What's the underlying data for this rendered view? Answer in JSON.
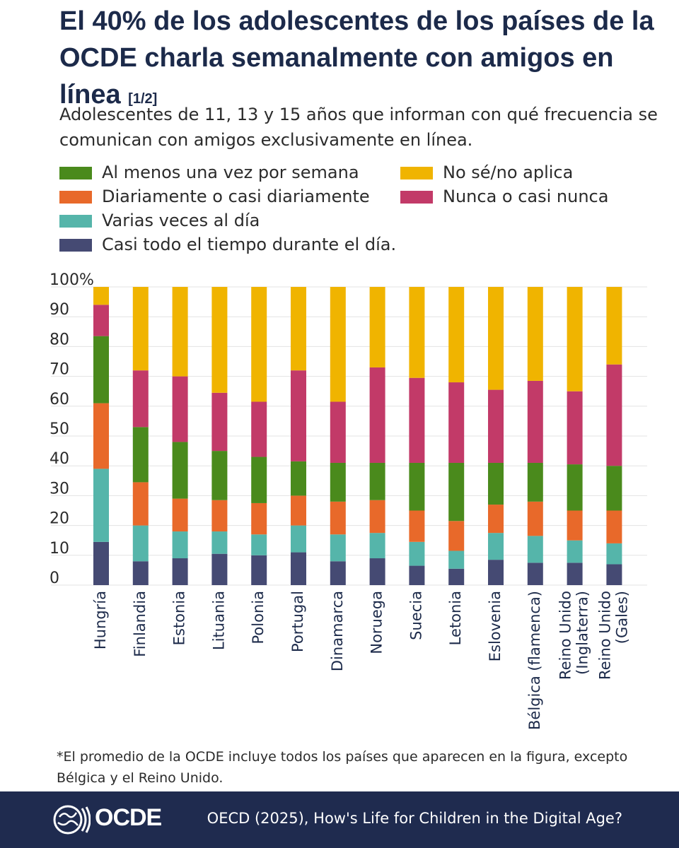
{
  "title": {
    "main": "El 40% de los adolescentes de los países de la OCDE charla semanalmente con amigos en línea",
    "part": "[1/2]"
  },
  "subtitle": "Adolescentes de 11, 13 y 15 años que informan con qué frecuencia se comunican con amigos exclusivamente en línea.",
  "colors": {
    "weekly": "#4a8a1c",
    "daily": "#e8692a",
    "several": "#55b5aa",
    "almost_all": "#454a73",
    "dont_know": "#f0b400",
    "never": "#c23a68"
  },
  "legend": [
    {
      "key": "weekly",
      "label": "Al menos una vez por semana"
    },
    {
      "key": "daily",
      "label": "Diariamente o casi diariamente"
    },
    {
      "key": "several",
      "label": "Varias veces al día"
    },
    {
      "key": "almost_all",
      "label": "Casi todo el tiempo durante el día."
    },
    {
      "key": "dont_know",
      "label": "No sé/no aplica"
    },
    {
      "key": "never",
      "label": "Nunca o casi nunca"
    }
  ],
  "chart_data": {
    "type": "bar",
    "stacked": true,
    "title": "El 40% de los adolescentes de los países de la OCDE charla semanalmente con amigos en línea",
    "xlabel": "",
    "ylabel": "",
    "ylim": [
      0,
      100
    ],
    "y_ticks": [
      "0",
      "10",
      "20",
      "30",
      "40",
      "50",
      "60",
      "70",
      "80",
      "90",
      "100%"
    ],
    "categories": [
      "Hungría",
      "Finlandia",
      "Estonia",
      "Lituania",
      "Polonia",
      "Portugal",
      "Dinamarca",
      "Noruega",
      "Suecia",
      "Letonia",
      "Eslovenia",
      "Bélgica (flamenca)",
      "Reino Unido (Inglaterra)",
      "Reino Unido (Gales)"
    ],
    "category_lines": [
      [
        "Hungría"
      ],
      [
        "Finlandia"
      ],
      [
        "Estonia"
      ],
      [
        "Lituania"
      ],
      [
        "Polonia"
      ],
      [
        "Portugal"
      ],
      [
        "Dinamarca"
      ],
      [
        "Noruega"
      ],
      [
        "Suecia"
      ],
      [
        "Letonia"
      ],
      [
        "Eslovenia"
      ],
      [
        "Bélgica (flamenca)"
      ],
      [
        "Reino Unido",
        "(Inglaterra)"
      ],
      [
        "Reino Unido",
        "(Gales)"
      ]
    ],
    "series": [
      {
        "name": "Casi todo el tiempo durante el día.",
        "key": "almost_all",
        "values": [
          14.5,
          8,
          9,
          10.5,
          10,
          11,
          8,
          9,
          6.5,
          5.5,
          8.5,
          7.5,
          7.5,
          7
        ]
      },
      {
        "name": "Varias veces al día",
        "key": "several",
        "values": [
          24.5,
          12,
          9,
          7.5,
          7,
          9,
          9,
          8.5,
          8,
          6,
          9,
          9,
          7.5,
          7
        ]
      },
      {
        "name": "Diariamente o casi diariamente",
        "key": "daily",
        "values": [
          22,
          14.5,
          11,
          10.5,
          10.5,
          10,
          11,
          11,
          10.5,
          10,
          9.5,
          11.5,
          10,
          11
        ]
      },
      {
        "name": "Al menos una vez por semana",
        "key": "weekly",
        "values": [
          22.5,
          18.5,
          19,
          16.5,
          15.5,
          11.5,
          13,
          12.5,
          16,
          19.5,
          14,
          13,
          15.5,
          15
        ]
      },
      {
        "name": "Nunca o casi nunca",
        "key": "never",
        "values": [
          10.5,
          19,
          22,
          19.5,
          18.5,
          30.5,
          20.5,
          32,
          28.5,
          27,
          24.5,
          27.5,
          24.5,
          34
        ]
      },
      {
        "name": "No sé/no aplica",
        "key": "dont_know",
        "values": [
          6,
          28,
          30,
          35.5,
          38.5,
          28,
          38.5,
          27,
          30.5,
          32,
          34.5,
          31.5,
          35,
          26
        ]
      }
    ]
  },
  "footnote": "*El promedio de la OCDE incluye todos los países que aparecen en la figura, excepto Bélgica y el Reino Unido.",
  "footer": {
    "logo_text": "OCDE",
    "source": "OECD (2025), How's Life for Children in the Digital Age?"
  }
}
